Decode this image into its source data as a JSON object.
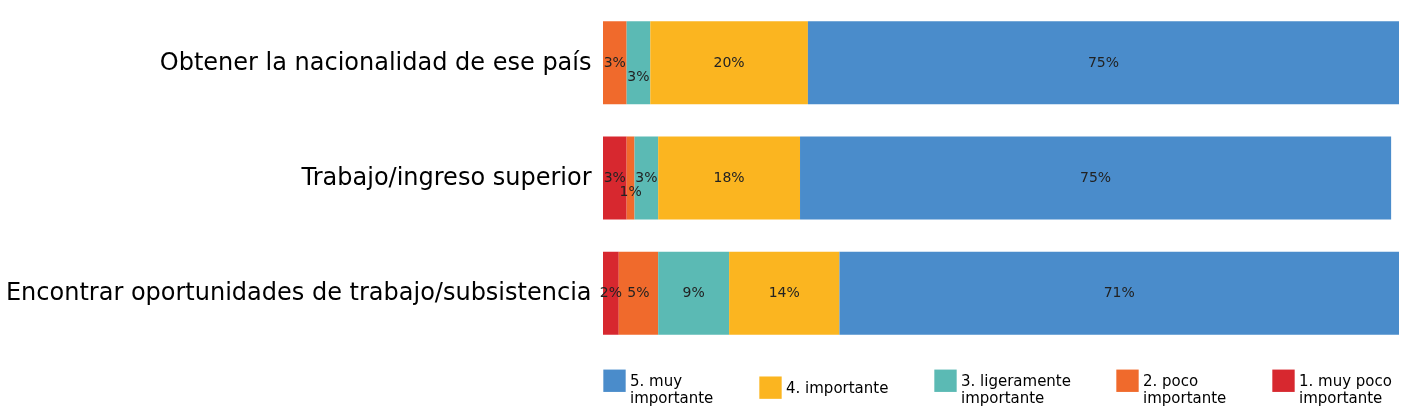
{
  "chart_data": {
    "type": "bar",
    "orientation": "horizontal",
    "stacked": true,
    "legend": "bottom",
    "categories": [
      "Obtener la nacionalidad de ese país",
      "Trabajo/ingreso superior",
      "Encontrar oportunidades de trabajo/subsistencia"
    ],
    "series": [
      {
        "name": "1. muy poco importante",
        "color": "#d7282f",
        "values": [
          null,
          3,
          2
        ],
        "value_labels": [
          null,
          "3%",
          "2%"
        ]
      },
      {
        "name": "2. poco importante",
        "color": "#f06a2c",
        "values": [
          3,
          1,
          5
        ],
        "value_labels": [
          "3%",
          "1%",
          "5%"
        ]
      },
      {
        "name": "3. ligeramente importante",
        "color": "#5bbab4",
        "values": [
          3,
          3,
          9
        ],
        "value_labels": [
          "3%",
          "3%",
          "9%"
        ]
      },
      {
        "name": "4. importante",
        "color": "#fbb520",
        "values": [
          20,
          18,
          14
        ],
        "value_labels": [
          "20%",
          "18%",
          "14%"
        ]
      },
      {
        "name": "5. muy importante",
        "color": "#4a8ccb",
        "values": [
          75,
          75,
          71
        ],
        "value_labels": [
          "75%",
          "75%",
          "71%"
        ]
      }
    ]
  }
}
